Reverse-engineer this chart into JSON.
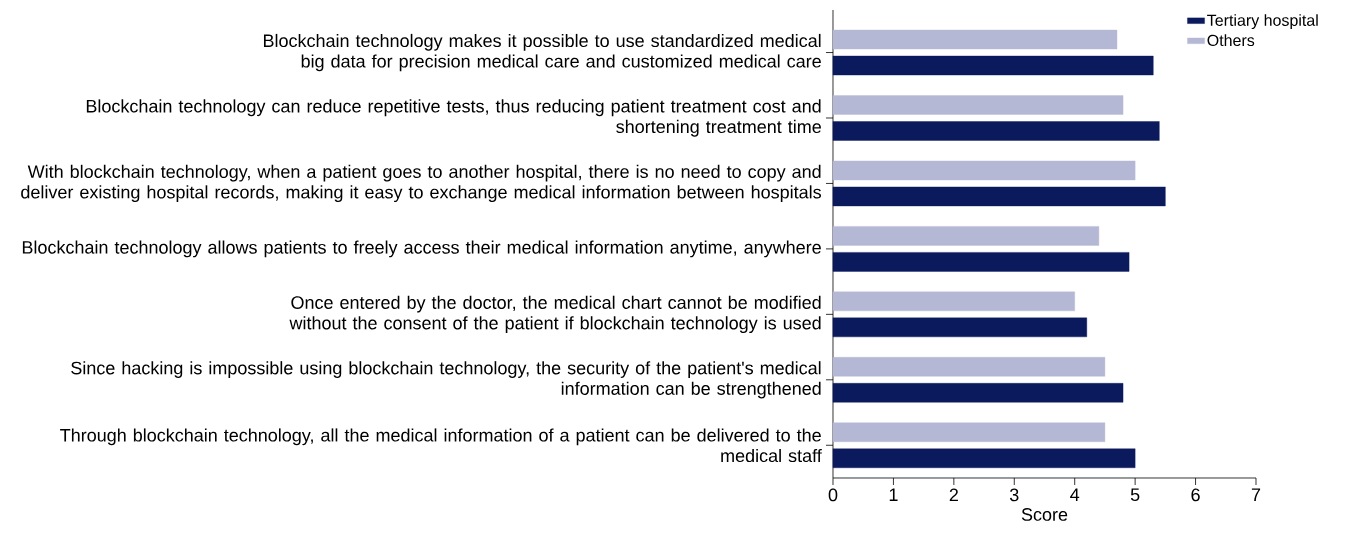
{
  "chart_data": {
    "type": "bar",
    "orientation": "horizontal",
    "xlabel": "Score",
    "xlim": [
      0,
      7
    ],
    "xticks": [
      0,
      1,
      2,
      3,
      4,
      5,
      6,
      7
    ],
    "legend": "top right",
    "categories": [
      "Blockchain technology makes it possible to use standardized medical big data for precision medical care and customized medical care",
      "Blockchain technology can reduce repetitive tests, thus reducing patient treatment cost and shortening treatment time",
      "With blockchain technology, when a patient goes to another hospital, there is no need to copy and deliver existing hospital records, making it easy to exchange medical information between hospitals",
      "Blockchain technology allows patients to freely access their medical information anytime, anywhere",
      "Once entered by the doctor, the medical chart cannot be modified without the consent of the patient if blockchain technology is used",
      "Since hacking is impossible using blockchain technology, the security of the patient's medical information can be strengthened",
      "Through blockchain technology, all the medical information of a patient can be delivered to the medical staff"
    ],
    "series": [
      {
        "name": "Tertiary hospital",
        "color": "#0a1a5c",
        "values": [
          5.3,
          5.4,
          5.5,
          4.9,
          4.2,
          4.8,
          5.0
        ]
      },
      {
        "name": "Others",
        "color": "#b5b8d4",
        "values": [
          4.7,
          4.8,
          5.0,
          4.4,
          4.0,
          4.5,
          4.5
        ]
      }
    ]
  }
}
